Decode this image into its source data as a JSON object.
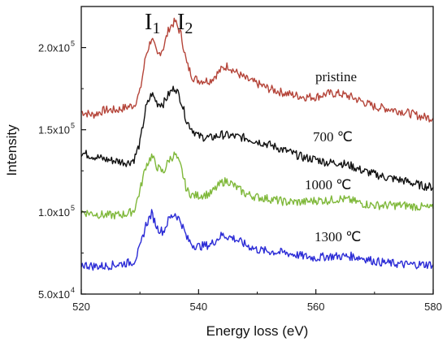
{
  "chart_data": {
    "type": "line",
    "title": "",
    "xlabel": "Energy loss (eV)",
    "ylabel": "Intensity",
    "xlim": [
      520,
      580
    ],
    "ylim": [
      50000,
      225000
    ],
    "grid": false,
    "x_ticks": [
      520,
      540,
      560,
      580
    ],
    "x_tick_labels": [
      "520",
      "540",
      "560",
      "580"
    ],
    "y_ticks": [
      50000,
      100000,
      150000,
      200000
    ],
    "y_tick_labels": [
      "5.0x10",
      "1.0x10",
      "1.5x10",
      "2.0x10"
    ],
    "y_tick_exponents": [
      "4",
      "5",
      "5",
      "5"
    ],
    "peak_labels": [
      {
        "main": "I",
        "sub": "1",
        "x": 532
      },
      {
        "main": "I",
        "sub": "2",
        "x": 536
      }
    ],
    "series": [
      {
        "name": "pristine",
        "color": "#b5453a",
        "x": [
          520,
          522,
          524,
          526,
          528,
          529,
          530,
          531,
          532,
          533,
          534,
          535,
          536,
          537,
          538,
          539,
          540,
          542,
          544,
          545,
          546,
          548,
          550,
          552,
          555,
          558,
          560,
          562,
          564,
          566,
          568,
          570,
          572,
          575,
          578,
          580
        ],
        "y": [
          161000,
          159000,
          162000,
          162000,
          164000,
          165000,
          173000,
          195000,
          206000,
          195000,
          200000,
          212000,
          216000,
          208000,
          190000,
          182000,
          180000,
          180000,
          187000,
          189000,
          186000,
          181000,
          178000,
          175000,
          172000,
          170000,
          170000,
          172000,
          172000,
          170000,
          167000,
          164000,
          163000,
          161000,
          158000,
          157000
        ]
      },
      {
        "name": "700 ℃",
        "color": "#111111",
        "x": [
          520,
          522,
          524,
          526,
          528,
          529,
          530,
          531,
          532,
          533,
          534,
          535,
          536,
          537,
          538,
          539,
          540,
          542,
          544,
          546,
          548,
          550,
          552,
          555,
          558,
          560,
          562,
          564,
          566,
          568,
          570,
          572,
          575,
          578,
          580
        ],
        "y": [
          136000,
          134000,
          132000,
          131000,
          130000,
          132000,
          142000,
          163000,
          172000,
          166000,
          166000,
          172000,
          176000,
          168000,
          155000,
          150000,
          146000,
          145000,
          147000,
          146000,
          145000,
          143000,
          141000,
          137000,
          133000,
          132000,
          130000,
          130000,
          128000,
          125000,
          123000,
          121000,
          119000,
          116000,
          115000
        ]
      },
      {
        "name": "1000 ℃",
        "color": "#7fb83a",
        "x": [
          520,
          522,
          524,
          526,
          528,
          529,
          530,
          531,
          532,
          533,
          534,
          535,
          536,
          537,
          538,
          539,
          540,
          542,
          544,
          545,
          546,
          548,
          550,
          552,
          555,
          558,
          560,
          562,
          564,
          566,
          568,
          570,
          572,
          575,
          578,
          580
        ],
        "y": [
          100000,
          99000,
          98000,
          98000,
          99000,
          101000,
          113000,
          128000,
          134000,
          127000,
          124000,
          132000,
          135000,
          127000,
          113000,
          110000,
          110000,
          111000,
          118000,
          119000,
          116000,
          111000,
          109000,
          108000,
          106000,
          106000,
          107000,
          107000,
          108000,
          107000,
          105000,
          104000,
          104000,
          104000,
          103000,
          102000
        ]
      },
      {
        "name": "1300 ℃",
        "color": "#2b2bd6",
        "x": [
          520,
          522,
          524,
          526,
          528,
          529,
          530,
          531,
          532,
          533,
          534,
          535,
          536,
          537,
          538,
          539,
          540,
          542,
          544,
          546,
          548,
          550,
          552,
          555,
          558,
          560,
          562,
          564,
          566,
          568,
          570,
          572,
          575,
          578,
          580
        ],
        "y": [
          68000,
          67000,
          67000,
          68000,
          69000,
          70000,
          78000,
          92000,
          99000,
          90000,
          88000,
          96000,
          99000,
          94000,
          84000,
          80000,
          79000,
          80000,
          86000,
          84000,
          80000,
          77000,
          76000,
          75000,
          73000,
          72000,
          73000,
          73000,
          73000,
          72000,
          70000,
          69000,
          68000,
          68000,
          68000
        ]
      }
    ]
  }
}
